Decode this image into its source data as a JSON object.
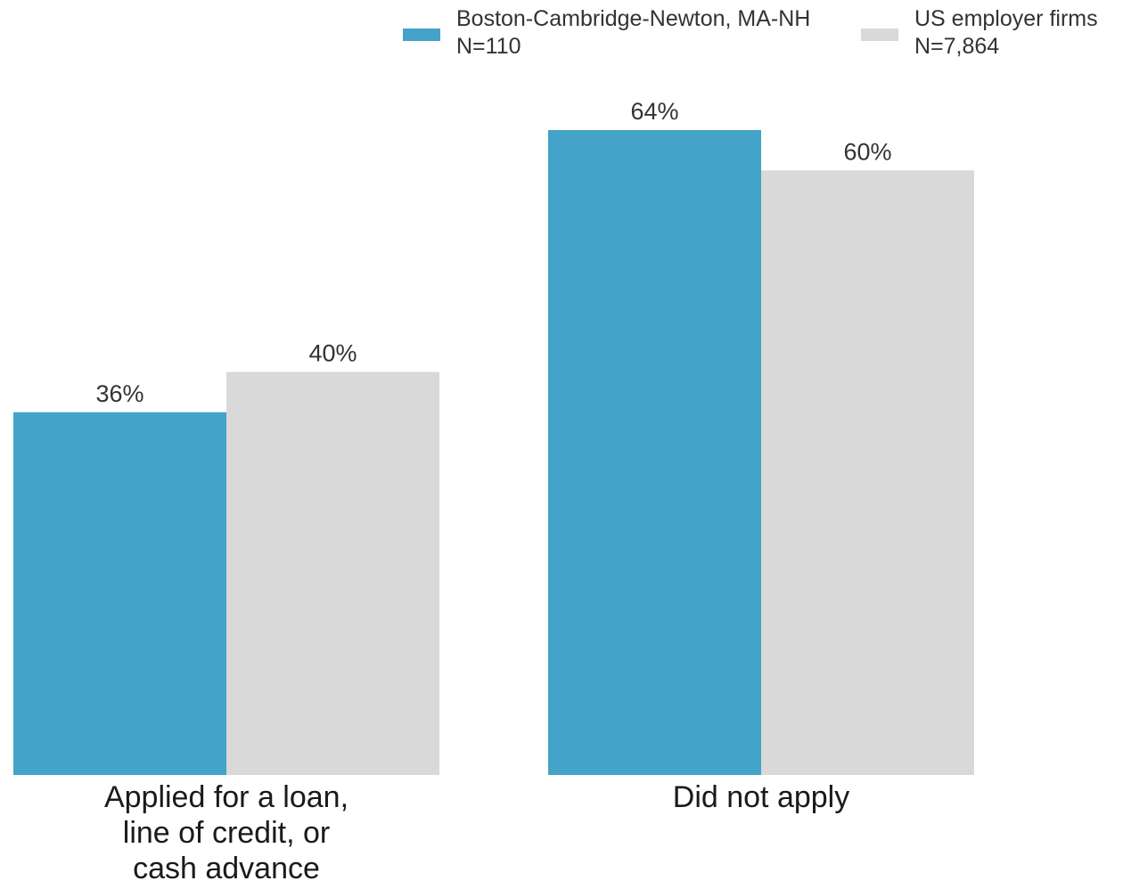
{
  "chart_data": {
    "type": "bar",
    "title": "",
    "xlabel": "",
    "ylabel": "",
    "ylim": [
      0,
      64
    ],
    "grid": false,
    "legend_position": "top-right",
    "categories": [
      [
        "Applied for a loan,",
        "line of credit, or",
        "cash advance"
      ],
      [
        "Did not apply"
      ]
    ],
    "series": [
      {
        "name": "Boston-Cambridge-Newton, MA-NH",
        "n_label": "N=110",
        "color": "#43a3c8",
        "values": [
          36,
          64
        ],
        "labels": [
          "36%",
          "64%"
        ]
      },
      {
        "name": "US employer firms",
        "n_label": "N=7,864",
        "color": "#d9d9d9",
        "values": [
          40,
          60
        ],
        "labels": [
          "40%",
          "60%"
        ]
      }
    ]
  }
}
